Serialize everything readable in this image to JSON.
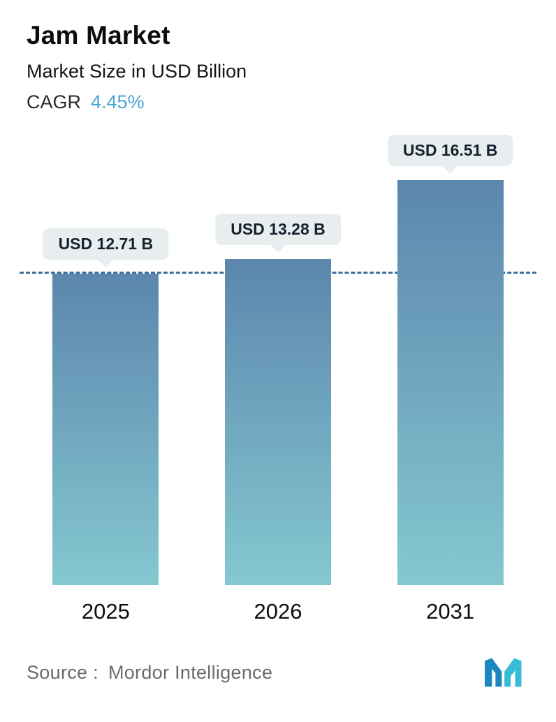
{
  "header": {
    "title": "Jam Market",
    "subtitle": "Market Size in USD Billion",
    "cagr_label": "CAGR",
    "cagr_value": "4.45%"
  },
  "chart_data": {
    "type": "bar",
    "title": "Jam Market",
    "ylabel": "Market Size in USD Billion",
    "cagr": "4.45%",
    "categories": [
      "2025",
      "2026",
      "2031"
    ],
    "values": [
      12.71,
      13.28,
      16.51
    ],
    "value_labels": [
      "USD 12.71 B",
      "USD 13.28 B",
      "USD 16.51 B"
    ],
    "ylim": [
      0,
      16.51
    ],
    "grid": false,
    "legend": false,
    "reference_line": {
      "value": 12.71,
      "style": "dashed"
    },
    "colors": {
      "bar_gradient_top": "#5c86ad",
      "bar_gradient_bottom": "#84c8d0",
      "badge_background": "#e8eef0",
      "badge_text": "#15222e",
      "reference_line": "#3d6f9f",
      "accent": "#4ba6d3"
    }
  },
  "footer": {
    "source_label": "Source :",
    "source_value": "Mordor Intelligence",
    "logo_icon": "mordor-intelligence-logo",
    "logo_colors": [
      "#1b86c0",
      "#38bcd8"
    ]
  }
}
